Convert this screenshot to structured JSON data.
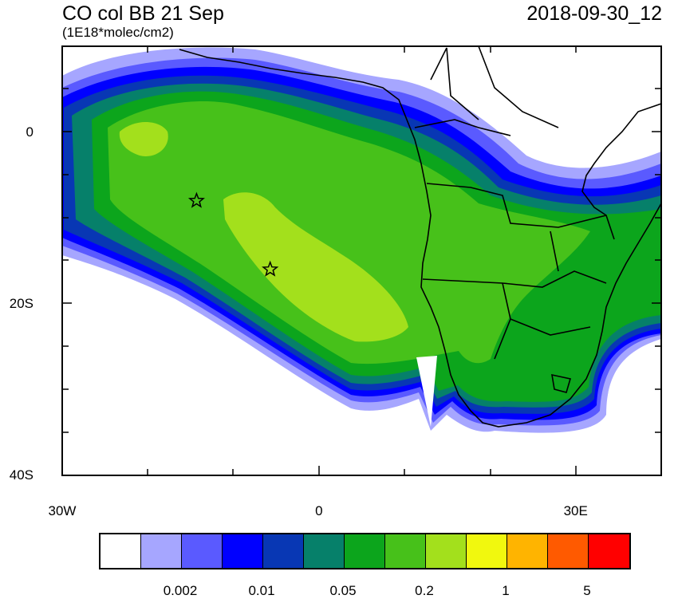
{
  "title": "CO col BB 21 Sep",
  "units": "(1E18*molec/cm2)",
  "date": "2018-09-30_12",
  "map": {
    "lon_range": [
      -30,
      40
    ],
    "lat_range": [
      -40,
      10
    ],
    "x_ticks": [
      {
        "lon": -30,
        "label": "30W"
      },
      {
        "lon": 0,
        "label": "0"
      },
      {
        "lon": 30,
        "label": "30E"
      }
    ],
    "y_ticks": [
      {
        "lat": 0,
        "label": "0"
      },
      {
        "lat": -20,
        "label": "20S"
      },
      {
        "lat": -40,
        "label": "40S"
      }
    ],
    "stars": [
      {
        "lon": -14.3,
        "lat": -8.0
      },
      {
        "lon": -5.7,
        "lat": -16.0
      }
    ]
  },
  "colorbar": {
    "colors": [
      "#ffffff",
      "#a6a6ff",
      "#5a5aff",
      "#0000ff",
      "#0837b4",
      "#06806a",
      "#0ca51c",
      "#47c11a",
      "#a3e01c",
      "#f1f80e",
      "#ffb400",
      "#ff5a00",
      "#ff0000"
    ],
    "labels": [
      "0.002",
      "0.01",
      "0.05",
      "0.2",
      "1",
      "5"
    ]
  }
}
